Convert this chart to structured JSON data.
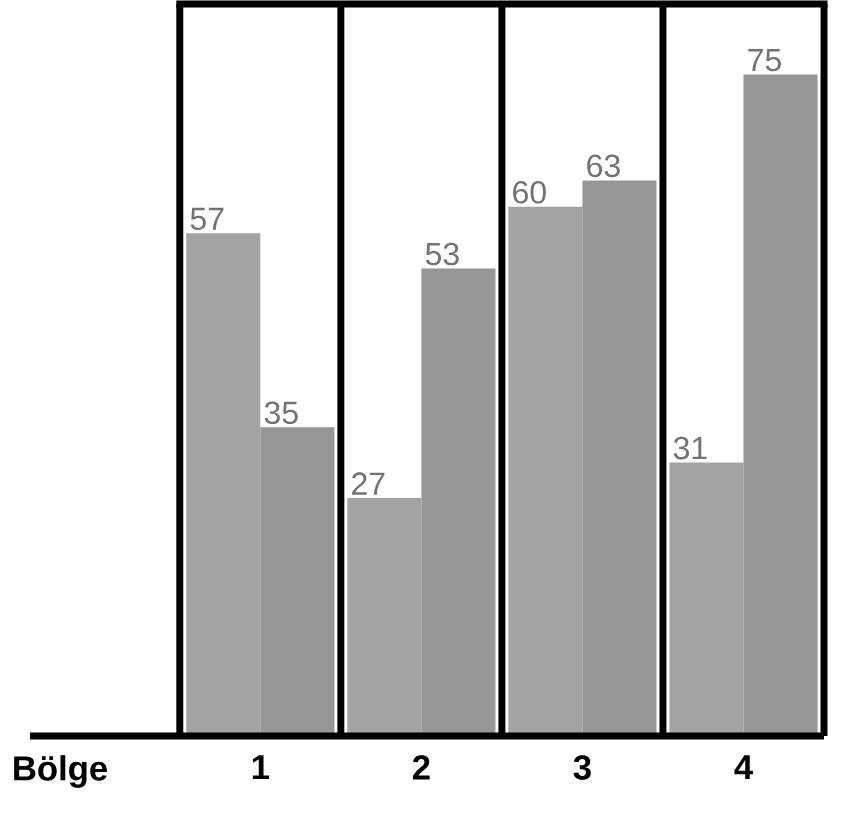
{
  "chart_data": {
    "type": "bar",
    "xlabel": "Bölge",
    "categories": [
      "1",
      "2",
      "3",
      "4"
    ],
    "series": [
      {
        "color": "#a3a3a3",
        "values": [
          57,
          27,
          60,
          31
        ]
      },
      {
        "color": "#969696",
        "values": [
          35,
          53,
          63,
          75
        ]
      }
    ],
    "ylim": [
      0,
      83
    ],
    "data_labels": true
  }
}
